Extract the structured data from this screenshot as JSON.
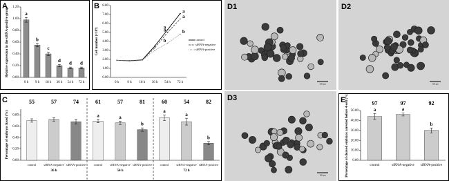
{
  "chart_data": [
    {
      "type": "bar",
      "panel": "A",
      "y_label": "Relative expression in the siRNA-positive group",
      "categories": [
        "0 h",
        "9 h",
        "18 h",
        "36 h",
        "54 h",
        "72 h"
      ],
      "values": [
        0.98,
        0.55,
        0.4,
        0.2,
        0.16,
        0.16
      ],
      "errors": [
        0.04,
        0.03,
        0.03,
        0.02,
        0.015,
        0.015
      ],
      "sig_labels": [
        "a",
        "b",
        "c",
        "d",
        "d",
        "d"
      ],
      "color": "#8c8c8c",
      "ylim": [
        0,
        1.2
      ],
      "yticks": [
        {
          "value": 0,
          "label": "0.00"
        },
        {
          "value": 0.2,
          "label": "0.20"
        },
        {
          "value": 0.4,
          "label": "0.40"
        },
        {
          "value": 0.6,
          "label": "0.60"
        },
        {
          "value": 0.8,
          "label": "0.80"
        },
        {
          "value": 1,
          "label": "1.00"
        },
        {
          "value": 1.2,
          "label": "1.20"
        }
      ]
    },
    {
      "type": "line",
      "panel": "B",
      "y_label": "Cell number (×10⁴)",
      "categories": [
        "0 h",
        "9 h",
        "18 h",
        "36 h",
        "54 h",
        "72 h"
      ],
      "series": [
        {
          "name": "control",
          "color": "#000000",
          "style": "solid",
          "values": [
            1.9,
            1.85,
            1.95,
            3.5,
            5.3,
            7.1
          ],
          "sig_labels": [
            null,
            null,
            null,
            null,
            "a",
            "a"
          ]
        },
        {
          "name": "siRNA-negative",
          "color": "#555555",
          "style": "dashed",
          "values": [
            1.9,
            1.85,
            1.9,
            3.3,
            5.0,
            6.5
          ],
          "sig_labels": [
            null,
            null,
            null,
            null,
            "a",
            "a"
          ]
        },
        {
          "name": "siRNA-positive",
          "color": "#999999",
          "style": "dotted",
          "values": [
            1.9,
            1.8,
            1.9,
            3.0,
            3.8,
            4.8
          ],
          "sig_labels": [
            null,
            null,
            null,
            null,
            "b",
            "b"
          ]
        }
      ],
      "ylim": [
        0,
        8
      ],
      "yticks": [
        {
          "value": 0,
          "label": "0.00"
        },
        {
          "value": 1,
          "label": "1.00"
        },
        {
          "value": 2,
          "label": "2.00"
        },
        {
          "value": 3,
          "label": "3.00"
        },
        {
          "value": 4,
          "label": "4.00"
        },
        {
          "value": 5,
          "label": "5.00"
        },
        {
          "value": 6,
          "label": "6.00"
        },
        {
          "value": 7,
          "label": "7.00"
        },
        {
          "value": 8,
          "label": "8.00"
        }
      ]
    },
    {
      "type": "grouped_bar",
      "panel": "C",
      "y_label": "Percentage of embryos fused (%)",
      "categories": [
        "control",
        "siRNA-negative",
        "siRNA-positive"
      ],
      "colors": [
        "#eeeeee",
        "#cccccc",
        "#888888"
      ],
      "groups": [
        {
          "name": "36 h",
          "values": [
            0.7,
            0.72,
            0.68
          ],
          "errors": [
            0.03,
            0.03,
            0.04
          ],
          "counts": [
            55,
            57,
            74
          ],
          "sig_labels": [
            null,
            null,
            null
          ]
        },
        {
          "name": "54 h",
          "values": [
            0.69,
            0.66,
            0.54
          ],
          "errors": [
            0.03,
            0.03,
            0.03
          ],
          "counts": [
            61,
            57,
            81
          ],
          "sig_labels": [
            "a",
            "a",
            "b"
          ]
        },
        {
          "name": "72 h",
          "values": [
            0.75,
            0.68,
            0.3
          ],
          "errors": [
            0.05,
            0.06,
            0.03
          ],
          "counts": [
            60,
            54,
            82
          ],
          "sig_labels": [
            "a",
            "a",
            "b"
          ]
        }
      ],
      "ylim": [
        0,
        0.9
      ],
      "yticks": [
        {
          "value": 0,
          "label": "0.00"
        },
        {
          "value": 0.2,
          "label": "0.20"
        },
        {
          "value": 0.4,
          "label": "0.40"
        },
        {
          "value": 0.6,
          "label": "0.60"
        },
        {
          "value": 0.8,
          "label": "0.80"
        }
      ]
    },
    {
      "type": "bar",
      "panel": "E",
      "y_label": "Percentage of cleaved embryos arrested before 4-cell (%)",
      "categories": [
        "control",
        "siRNA-negative",
        "siRNA-positive"
      ],
      "values": [
        44,
        46,
        30
      ],
      "errors": [
        3,
        1.5,
        2.5
      ],
      "counts": [
        97,
        97,
        92
      ],
      "sig_labels": [
        "a",
        "a",
        "b"
      ],
      "color": "#cccccc",
      "ylim": [
        0,
        50
      ],
      "yticks": [
        {
          "value": 0,
          "label": "0.00"
        },
        {
          "value": 10,
          "label": "10.00"
        },
        {
          "value": 20,
          "label": "20.00"
        },
        {
          "value": 30,
          "label": "30.00"
        },
        {
          "value": 40,
          "label": "40.00"
        },
        {
          "value": 50,
          "label": "50.00"
        }
      ]
    }
  ],
  "images": [
    {
      "label": "D1",
      "scale_bar": "100 µm"
    },
    {
      "label": "D2",
      "scale_bar": "100 µm"
    },
    {
      "label": "D3",
      "scale_bar": "100 µm"
    }
  ]
}
